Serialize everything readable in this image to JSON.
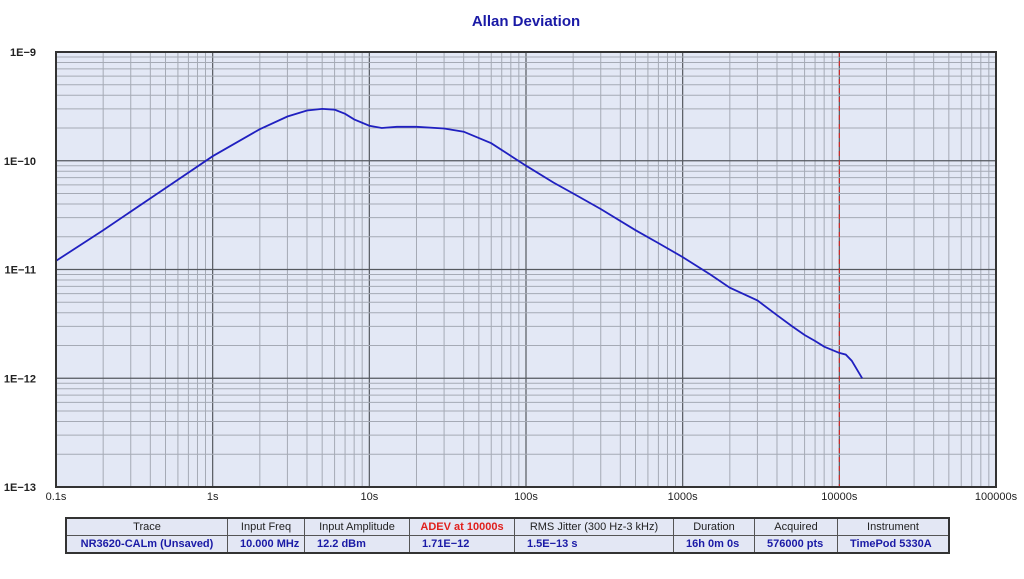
{
  "title": "Allan Deviation",
  "chart_data": {
    "type": "line",
    "title": "Allan Deviation",
    "xlabel": "",
    "ylabel": "",
    "xscale": "log",
    "yscale": "log",
    "xlim": [
      0.1,
      100000
    ],
    "ylim": [
      1e-13,
      1e-09
    ],
    "grid": true,
    "x_tick_labels": [
      "0.1s",
      "1s",
      "10s",
      "100s",
      "1000s",
      "10000s",
      "100000s"
    ],
    "y_tick_labels": [
      "1E-9",
      "1E-10",
      "1E-11",
      "1E-12",
      "1E-13"
    ],
    "marker_line": {
      "x": 10000,
      "style": "dashed",
      "color": "#e0201c"
    },
    "series": [
      {
        "name": "NR3620-CALm (Unsaved)",
        "color": "#2020c0",
        "x": [
          0.1,
          0.2,
          0.5,
          1,
          2,
          3,
          4,
          5,
          6,
          7,
          8,
          10,
          12,
          15,
          20,
          30,
          40,
          60,
          100,
          150,
          200,
          300,
          500,
          700,
          1000,
          1500,
          2000,
          3000,
          4000,
          5000,
          6000,
          7000,
          8000,
          10000,
          11000,
          12000,
          14000
        ],
        "y": [
          1.2e-11,
          2.3e-11,
          5.6e-11,
          1.1e-10,
          1.95e-10,
          2.55e-10,
          2.9e-10,
          3e-10,
          2.95e-10,
          2.7e-10,
          2.4e-10,
          2.1e-10,
          2e-10,
          2.05e-10,
          2.05e-10,
          1.98e-10,
          1.85e-10,
          1.45e-10,
          9e-11,
          6.3e-11,
          5e-11,
          3.6e-11,
          2.3e-11,
          1.75e-11,
          1.3e-11,
          9e-12,
          6.8e-12,
          5.2e-12,
          3.8e-12,
          3e-12,
          2.5e-12,
          2.2e-12,
          1.95e-12,
          1.71e-12,
          1.65e-12,
          1.45e-12,
          1e-12
        ]
      }
    ]
  },
  "info_table": {
    "headers": [
      "Trace",
      "Input Freq",
      "Input Amplitude",
      "ADEV at 10000s",
      "RMS Jitter (300 Hz-3 kHz)",
      "Duration",
      "Acquired",
      "Instrument"
    ],
    "values": [
      "NR3620-CALm (Unsaved)",
      "10.000 MHz",
      "12.2 dBm",
      "1.71E−12",
      "1.5E−13 s",
      "16h 0m 0s",
      "576000 pts",
      "TimePod 5330A"
    ],
    "highlight_header_color": "#e0201c"
  }
}
